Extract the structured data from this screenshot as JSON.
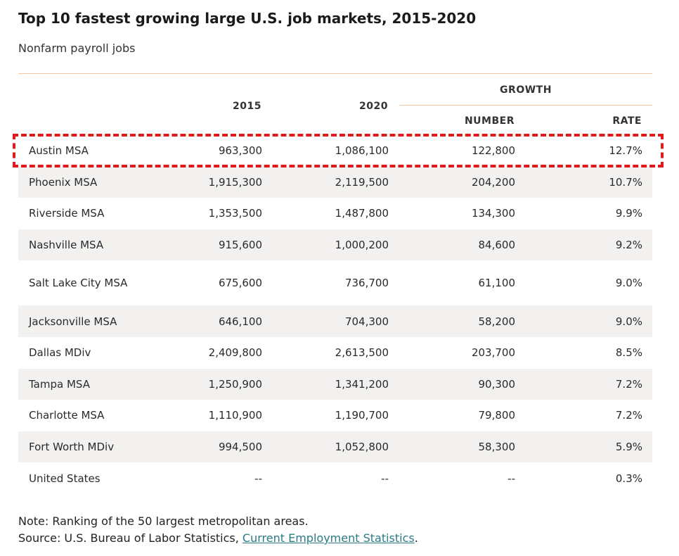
{
  "title": "Top 10 fastest growing large U.S. job markets, 2015-2020",
  "subtitle": "Nonfarm payroll jobs",
  "headers": {
    "growth": "GROWTH",
    "y2015": "2015",
    "y2020": "2020",
    "number": "NUMBER",
    "rate": "RATE"
  },
  "note": "Note: Ranking of the 50 largest metropolitan areas.",
  "source": {
    "prefix": "Source: U.S. Bureau of Labor Statistics, ",
    "link_text": "Current Employment Statistics",
    "suffix": "."
  },
  "colors": {
    "highlight": "#e01a1a",
    "rule": "#f2c9a3",
    "row_shade": "#f3f1ef",
    "link": "#2a7b87"
  },
  "chart_data": {
    "type": "table",
    "title": "Top 10 fastest growing large U.S. job markets, 2015-2020",
    "subtitle": "Nonfarm payroll jobs",
    "columns": [
      "",
      "2015",
      "2020",
      "NUMBER",
      "RATE"
    ],
    "column_group": {
      "label": "GROWTH",
      "spans": [
        "NUMBER",
        "RATE"
      ]
    },
    "highlighted_row": "Austin MSA",
    "rows": [
      {
        "area": "Austin MSA",
        "y2015": "963,300",
        "y2020": "1,086,100",
        "number": "122,800",
        "rate": "12.7%"
      },
      {
        "area": "Phoenix MSA",
        "y2015": "1,915,300",
        "y2020": "2,119,500",
        "number": "204,200",
        "rate": "10.7%"
      },
      {
        "area": "Riverside MSA",
        "y2015": "1,353,500",
        "y2020": "1,487,800",
        "number": "134,300",
        "rate": "9.9%"
      },
      {
        "area": "Nashville MSA",
        "y2015": "915,600",
        "y2020": "1,000,200",
        "number": "84,600",
        "rate": "9.2%"
      },
      {
        "area": "Salt Lake City MSA",
        "y2015": "675,600",
        "y2020": "736,700",
        "number": "61,100",
        "rate": "9.0%"
      },
      {
        "area": "Jacksonville MSA",
        "y2015": "646,100",
        "y2020": "704,300",
        "number": "58,200",
        "rate": "9.0%"
      },
      {
        "area": "Dallas MDiv",
        "y2015": "2,409,800",
        "y2020": "2,613,500",
        "number": "203,700",
        "rate": "8.5%"
      },
      {
        "area": "Tampa MSA",
        "y2015": "1,250,900",
        "y2020": "1,341,200",
        "number": "90,300",
        "rate": "7.2%"
      },
      {
        "area": "Charlotte MSA",
        "y2015": "1,110,900",
        "y2020": "1,190,700",
        "number": "79,800",
        "rate": "7.2%"
      },
      {
        "area": "Fort Worth MDiv",
        "y2015": "994,500",
        "y2020": "1,052,800",
        "number": "58,300",
        "rate": "5.9%"
      },
      {
        "area": "United States",
        "y2015": "--",
        "y2020": "--",
        "number": "--",
        "rate": "0.3%"
      }
    ]
  }
}
